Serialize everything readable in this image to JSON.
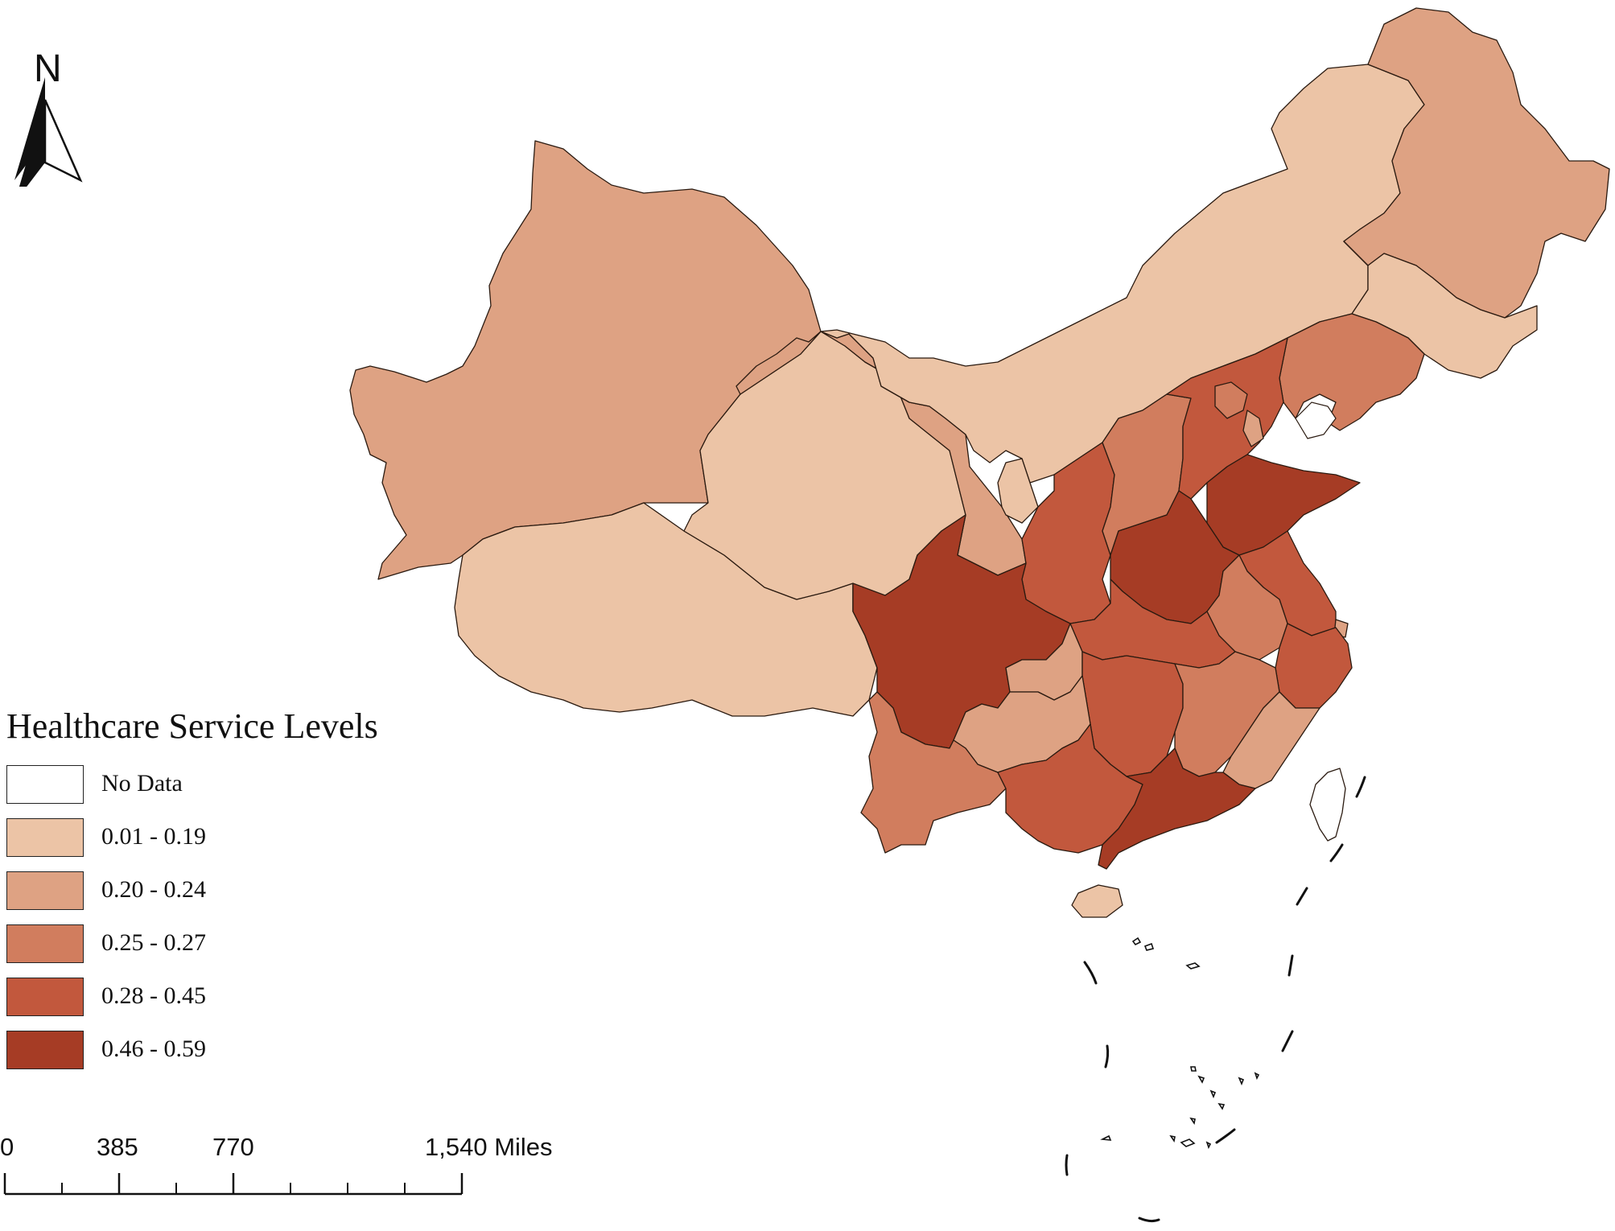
{
  "legend": {
    "title": "Healthcare Service Levels",
    "classes": [
      {
        "label": "No Data",
        "color": "#ffffff"
      },
      {
        "label": "0.01 - 0.19",
        "color": "#ecc4a6"
      },
      {
        "label": "0.20 - 0.24",
        "color": "#dea283"
      },
      {
        "label": "0.25 - 0.27",
        "color": "#d17d5e"
      },
      {
        "label": "0.28 - 0.45",
        "color": "#c2583d"
      },
      {
        "label": "0.46 - 0.59",
        "color": "#a63c25"
      }
    ]
  },
  "north_arrow": {
    "label": "N"
  },
  "scale_bar": {
    "ticks": [
      "0",
      "385",
      "770",
      "1,540 Miles"
    ]
  },
  "regions": [
    {
      "id": "xinjiang",
      "class": 2
    },
    {
      "id": "tibet",
      "class": 1
    },
    {
      "id": "qinghai",
      "class": 1
    },
    {
      "id": "gansu",
      "class": 2
    },
    {
      "id": "inner-mongolia",
      "class": 1
    },
    {
      "id": "heilongjiang",
      "class": 2
    },
    {
      "id": "jilin",
      "class": 1
    },
    {
      "id": "liaoning",
      "class": 3
    },
    {
      "id": "ningxia",
      "class": 1
    },
    {
      "id": "shaanxi",
      "class": 4
    },
    {
      "id": "shanxi",
      "class": 3
    },
    {
      "id": "hebei",
      "class": 4
    },
    {
      "id": "beijing",
      "class": 3
    },
    {
      "id": "tianjin",
      "class": 2
    },
    {
      "id": "shandong",
      "class": 5
    },
    {
      "id": "henan",
      "class": 5
    },
    {
      "id": "jiangsu",
      "class": 4
    },
    {
      "id": "anhui",
      "class": 3
    },
    {
      "id": "shanghai",
      "class": 2
    },
    {
      "id": "zhejiang",
      "class": 4
    },
    {
      "id": "hubei",
      "class": 4
    },
    {
      "id": "sichuan",
      "class": 5
    },
    {
      "id": "chongqing",
      "class": 2
    },
    {
      "id": "hunan",
      "class": 4
    },
    {
      "id": "jiangxi",
      "class": 3
    },
    {
      "id": "fujian",
      "class": 2
    },
    {
      "id": "guizhou",
      "class": 2
    },
    {
      "id": "yunnan",
      "class": 3
    },
    {
      "id": "guangxi",
      "class": 4
    },
    {
      "id": "guangdong",
      "class": 5
    },
    {
      "id": "hainan",
      "class": 1
    },
    {
      "id": "taiwan",
      "class": 0
    }
  ]
}
